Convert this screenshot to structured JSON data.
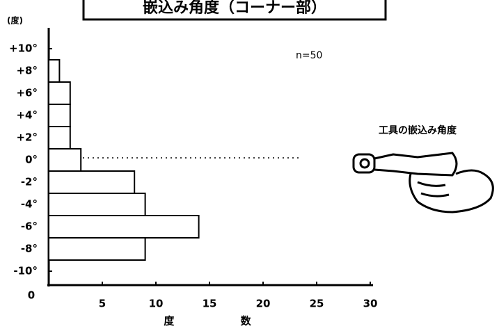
{
  "chart_data": {
    "type": "bar",
    "orientation": "horizontal",
    "title": "嵌込み角度（コーナー部）",
    "y_label": "(度)",
    "x_label": "度 数",
    "annotation": "n=50",
    "diagram_label": "工具の嵌込み角度",
    "categories": [
      "+10°",
      "+8°",
      "+6°",
      "+4°",
      "+2°",
      "0°",
      "-2°",
      "-4°",
      "-6°",
      "-8°",
      "-10°"
    ],
    "values": [
      0,
      1,
      2,
      2,
      2,
      3,
      8,
      9,
      14,
      9,
      0
    ],
    "color": "#ffffff",
    "xlim": [
      0,
      30
    ],
    "xticks": [
      0,
      5,
      10,
      15,
      20,
      25,
      30
    ]
  }
}
